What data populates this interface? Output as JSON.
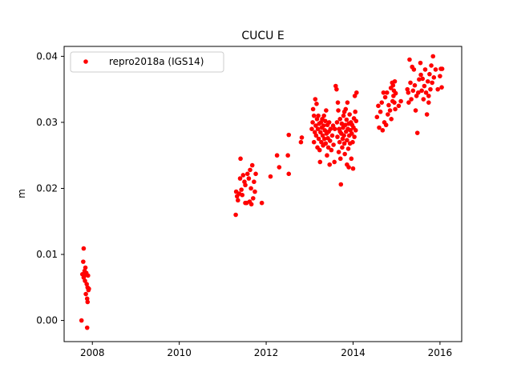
{
  "chart_data": {
    "type": "scatter",
    "title": "CUCU E",
    "xlabel": "",
    "ylabel": "m",
    "xlim": [
      2007.35,
      2016.5
    ],
    "ylim": [
      -0.0032,
      0.0415
    ],
    "xticks": [
      2008,
      2010,
      2012,
      2014,
      2016
    ],
    "xtick_labels": [
      "2008",
      "2010",
      "2012",
      "2014",
      "2016"
    ],
    "yticks": [
      0.0,
      0.01,
      0.02,
      0.03,
      0.04
    ],
    "ytick_labels": [
      "0.00",
      "0.01",
      "0.02",
      "0.03",
      "0.04"
    ],
    "grid": false,
    "legend": {
      "position": "top-left"
    },
    "series": [
      {
        "name": "repro2018a (IGS14)",
        "color": "#ff0000",
        "marker": "circle",
        "points": [
          [
            2007.75,
            0.0
          ],
          [
            2007.77,
            0.007
          ],
          [
            2007.79,
            0.0089
          ],
          [
            2007.8,
            0.0109
          ],
          [
            2007.81,
            0.0068
          ],
          [
            2007.82,
            0.0075
          ],
          [
            2007.83,
            0.006
          ],
          [
            2007.84,
            0.008
          ],
          [
            2007.85,
            0.004
          ],
          [
            2007.86,
            0.0072
          ],
          [
            2007.87,
            0.0055
          ],
          [
            2007.88,
            0.0033
          ],
          [
            2007.88,
            -0.0011
          ],
          [
            2007.89,
            0.005
          ],
          [
            2007.89,
            0.0028
          ],
          [
            2007.9,
            0.0068
          ],
          [
            2007.91,
            0.0046
          ],
          [
            2007.92,
            0.0048
          ],
          [
            2007.8,
            0.0065
          ],
          [
            2007.86,
            0.0069
          ],
          [
            2011.3,
            0.016
          ],
          [
            2011.31,
            0.0195
          ],
          [
            2011.33,
            0.0188
          ],
          [
            2011.35,
            0.0182
          ],
          [
            2011.38,
            0.0192
          ],
          [
            2011.4,
            0.0215
          ],
          [
            2011.41,
            0.0245
          ],
          [
            2011.43,
            0.0198
          ],
          [
            2011.45,
            0.019
          ],
          [
            2011.47,
            0.022
          ],
          [
            2011.5,
            0.021
          ],
          [
            2011.52,
            0.0205
          ],
          [
            2011.55,
            0.0178
          ],
          [
            2011.57,
            0.0222
          ],
          [
            2011.6,
            0.0215
          ],
          [
            2011.62,
            0.018
          ],
          [
            2011.63,
            0.0228
          ],
          [
            2011.65,
            0.02
          ],
          [
            2011.68,
            0.0235
          ],
          [
            2011.7,
            0.0185
          ],
          [
            2011.72,
            0.021
          ],
          [
            2011.74,
            0.0195
          ],
          [
            2011.76,
            0.0222
          ],
          [
            2011.52,
            0.0178
          ],
          [
            2011.66,
            0.0176
          ],
          [
            2011.9,
            0.0178
          ],
          [
            2012.1,
            0.0218
          ],
          [
            2012.25,
            0.025
          ],
          [
            2012.3,
            0.0232
          ],
          [
            2012.5,
            0.025
          ],
          [
            2012.52,
            0.0222
          ],
          [
            2012.52,
            0.0281
          ],
          [
            2012.8,
            0.027
          ],
          [
            2012.82,
            0.0277
          ],
          [
            2013.05,
            0.029
          ],
          [
            2013.07,
            0.03
          ],
          [
            2013.08,
            0.032
          ],
          [
            2013.1,
            0.027
          ],
          [
            2013.1,
            0.031
          ],
          [
            2013.12,
            0.0285
          ],
          [
            2013.13,
            0.0335
          ],
          [
            2013.14,
            0.0295
          ],
          [
            2013.15,
            0.028
          ],
          [
            2013.16,
            0.0328
          ],
          [
            2013.17,
            0.0305
          ],
          [
            2013.18,
            0.0262
          ],
          [
            2013.19,
            0.029
          ],
          [
            2013.2,
            0.031
          ],
          [
            2013.21,
            0.0275
          ],
          [
            2013.22,
            0.0298
          ],
          [
            2013.23,
            0.0258
          ],
          [
            2013.24,
            0.024
          ],
          [
            2013.25,
            0.0285
          ],
          [
            2013.26,
            0.03
          ],
          [
            2013.27,
            0.027
          ],
          [
            2013.28,
            0.0292
          ],
          [
            2013.29,
            0.0305
          ],
          [
            2013.3,
            0.028
          ],
          [
            2013.31,
            0.0265
          ],
          [
            2013.32,
            0.0295
          ],
          [
            2013.33,
            0.031
          ],
          [
            2013.34,
            0.0275
          ],
          [
            2013.35,
            0.0288
          ],
          [
            2013.36,
            0.0302
          ],
          [
            2013.37,
            0.0268
          ],
          [
            2013.38,
            0.0318
          ],
          [
            2013.39,
            0.0283
          ],
          [
            2013.4,
            0.025
          ],
          [
            2013.41,
            0.0296
          ],
          [
            2013.42,
            0.0276
          ],
          [
            2013.43,
            0.0262
          ],
          [
            2013.44,
            0.0286
          ],
          [
            2013.45,
            0.03
          ],
          [
            2013.46,
            0.0236
          ],
          [
            2013.47,
            0.0272
          ],
          [
            2013.48,
            0.029
          ],
          [
            2013.5,
            0.0258
          ],
          [
            2013.52,
            0.028
          ],
          [
            2013.54,
            0.0295
          ],
          [
            2013.55,
            0.0266
          ],
          [
            2013.57,
            0.024
          ],
          [
            2013.58,
            0.029
          ],
          [
            2013.6,
            0.0355
          ],
          [
            2013.62,
            0.035
          ],
          [
            2013.63,
            0.03
          ],
          [
            2013.64,
            0.0278
          ],
          [
            2013.65,
            0.033
          ],
          [
            2013.66,
            0.0318
          ],
          [
            2013.67,
            0.0255
          ],
          [
            2013.68,
            0.029
          ],
          [
            2013.69,
            0.027
          ],
          [
            2013.7,
            0.0305
          ],
          [
            2013.71,
            0.0245
          ],
          [
            2013.72,
            0.0206
          ],
          [
            2013.73,
            0.0283
          ],
          [
            2013.74,
            0.0298
          ],
          [
            2013.75,
            0.0262
          ],
          [
            2013.76,
            0.0275
          ],
          [
            2013.77,
            0.0292
          ],
          [
            2013.78,
            0.031
          ],
          [
            2013.79,
            0.028
          ],
          [
            2013.8,
            0.0268
          ],
          [
            2013.81,
            0.0252
          ],
          [
            2013.82,
            0.0296
          ],
          [
            2013.83,
            0.032
          ],
          [
            2013.84,
            0.0286
          ],
          [
            2013.85,
            0.0304
          ],
          [
            2013.86,
            0.0273
          ],
          [
            2013.87,
            0.033
          ],
          [
            2013.88,
            0.029
          ],
          [
            2013.89,
            0.026
          ],
          [
            2013.9,
            0.0298
          ],
          [
            2013.91,
            0.028
          ],
          [
            2013.92,
            0.0312
          ],
          [
            2013.93,
            0.0268
          ],
          [
            2013.94,
            0.0288
          ],
          [
            2013.95,
            0.03
          ],
          [
            2013.96,
            0.0245
          ],
          [
            2013.97,
            0.0283
          ],
          [
            2013.98,
            0.0296
          ],
          [
            2013.99,
            0.027
          ],
          [
            2014.0,
            0.023
          ],
          [
            2014.01,
            0.0292
          ],
          [
            2014.02,
            0.0306
          ],
          [
            2014.03,
            0.0278
          ],
          [
            2014.04,
            0.034
          ],
          [
            2014.05,
            0.0316
          ],
          [
            2014.06,
            0.0288
          ],
          [
            2014.07,
            0.0302
          ],
          [
            2014.08,
            0.0345
          ],
          [
            2013.86,
            0.0236
          ],
          [
            2013.9,
            0.0232
          ],
          [
            2013.8,
            0.0316
          ],
          [
            2013.7,
            0.0286
          ],
          [
            2014.55,
            0.0308
          ],
          [
            2014.58,
            0.0325
          ],
          [
            2014.6,
            0.0292
          ],
          [
            2014.63,
            0.0316
          ],
          [
            2014.66,
            0.033
          ],
          [
            2014.68,
            0.0288
          ],
          [
            2014.7,
            0.0345
          ],
          [
            2014.72,
            0.03
          ],
          [
            2014.74,
            0.0338
          ],
          [
            2014.76,
            0.0296
          ],
          [
            2014.78,
            0.0345
          ],
          [
            2014.8,
            0.0312
          ],
          [
            2014.82,
            0.0326
          ],
          [
            2014.85,
            0.0318
          ],
          [
            2014.87,
            0.0352
          ],
          [
            2014.88,
            0.0305
          ],
          [
            2014.9,
            0.036
          ],
          [
            2014.91,
            0.0332
          ],
          [
            2014.92,
            0.0356
          ],
          [
            2014.93,
            0.034
          ],
          [
            2014.94,
            0.0348
          ],
          [
            2014.95,
            0.033
          ],
          [
            2014.96,
            0.0362
          ],
          [
            2014.97,
            0.032
          ],
          [
            2014.98,
            0.0344
          ],
          [
            2015.05,
            0.0325
          ],
          [
            2015.1,
            0.0332
          ],
          [
            2015.25,
            0.035
          ],
          [
            2015.27,
            0.0345
          ],
          [
            2015.28,
            0.033
          ],
          [
            2015.3,
            0.0395
          ],
          [
            2015.32,
            0.036
          ],
          [
            2015.34,
            0.0335
          ],
          [
            2015.36,
            0.0384
          ],
          [
            2015.38,
            0.0348
          ],
          [
            2015.4,
            0.038
          ],
          [
            2015.42,
            0.0356
          ],
          [
            2015.44,
            0.0318
          ],
          [
            2015.46,
            0.034
          ],
          [
            2015.48,
            0.0284
          ],
          [
            2015.5,
            0.0345
          ],
          [
            2015.52,
            0.0365
          ],
          [
            2015.55,
            0.039
          ],
          [
            2015.58,
            0.0348
          ],
          [
            2015.6,
            0.0366
          ],
          [
            2015.62,
            0.0335
          ],
          [
            2015.64,
            0.0355
          ],
          [
            2015.66,
            0.038
          ],
          [
            2015.68,
            0.0345
          ],
          [
            2015.7,
            0.0312
          ],
          [
            2015.72,
            0.0362
          ],
          [
            2015.74,
            0.034
          ],
          [
            2015.76,
            0.0373
          ],
          [
            2015.78,
            0.035
          ],
          [
            2015.8,
            0.0386
          ],
          [
            2015.82,
            0.036
          ],
          [
            2015.84,
            0.04
          ],
          [
            2015.86,
            0.0368
          ],
          [
            2015.9,
            0.038
          ],
          [
            2015.95,
            0.035
          ],
          [
            2016.0,
            0.037
          ],
          [
            2016.02,
            0.0381
          ],
          [
            2016.04,
            0.0353
          ],
          [
            2016.05,
            0.0381
          ],
          [
            2015.56,
            0.0372
          ],
          [
            2015.74,
            0.033
          ]
        ]
      }
    ]
  }
}
